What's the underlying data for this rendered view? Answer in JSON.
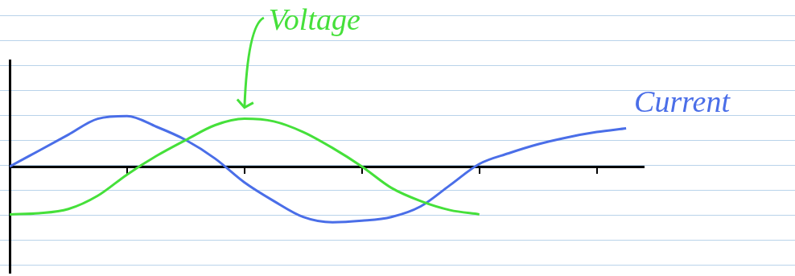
{
  "chart_data": {
    "type": "line",
    "x": [
      0,
      0.25,
      0.5,
      0.75,
      1.0,
      1.25,
      1.5,
      1.75,
      2.0,
      2.25,
      2.5,
      2.75,
      3.0,
      3.25,
      3.5,
      3.75,
      4.0,
      4.25,
      4.5,
      4.75,
      5.0,
      5.25
    ],
    "series": [
      {
        "name": "Voltage",
        "color": "#45e03a",
        "values": [
          -0.9,
          -0.88,
          -0.8,
          -0.55,
          -0.15,
          0.2,
          0.5,
          0.78,
          0.9,
          0.85,
          0.65,
          0.35,
          0.0,
          -0.4,
          -0.65,
          -0.82,
          -0.9,
          null,
          null,
          null,
          null,
          null
        ]
      },
      {
        "name": "Current",
        "color": "#4a6ee8",
        "values": [
          0,
          0.3,
          0.6,
          0.9,
          0.95,
          0.75,
          0.5,
          0.15,
          -0.3,
          -0.65,
          -0.95,
          -1.05,
          -1.02,
          -0.95,
          -0.75,
          -0.35,
          0.05,
          0.25,
          0.42,
          0.55,
          0.65,
          0.72
        ]
      }
    ],
    "xlim": [
      0,
      5.4
    ],
    "xticks": [
      1,
      2,
      3,
      4,
      5
    ],
    "ylim": [
      -2,
      2
    ],
    "yticks": [],
    "grid": false,
    "tick_labels": false
  }
}
